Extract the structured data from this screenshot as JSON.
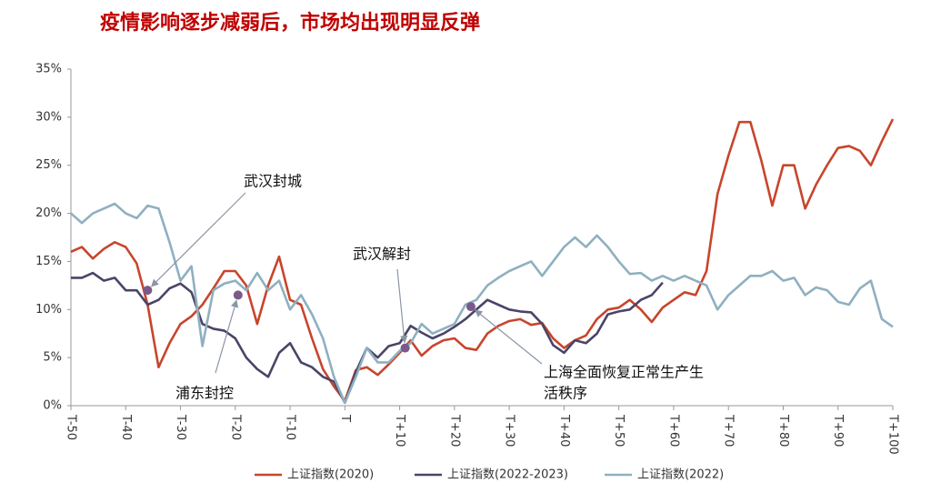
{
  "chart_data": {
    "type": "line",
    "title": "疫情影响逐步减弱后，市场均出现明显反弹",
    "x": [
      -50,
      -48,
      -46,
      -44,
      -42,
      -40,
      -38,
      -36,
      -34,
      -32,
      -30,
      -28,
      -26,
      -24,
      -22,
      -20,
      -18,
      -16,
      -14,
      -12,
      -10,
      -8,
      -6,
      -4,
      -2,
      0,
      2,
      4,
      6,
      8,
      10,
      12,
      14,
      16,
      18,
      20,
      22,
      24,
      26,
      28,
      30,
      32,
      34,
      36,
      38,
      40,
      42,
      44,
      46,
      48,
      50,
      52,
      54,
      56,
      58,
      60,
      62,
      64,
      66,
      68,
      70,
      72,
      74,
      76,
      78,
      80,
      82,
      84,
      86,
      88,
      90,
      92,
      94,
      96,
      98,
      100
    ],
    "series": [
      {
        "name": "上证指数(2020)",
        "color": "#c8452c",
        "values": [
          16,
          16.5,
          15.3,
          16.3,
          17,
          16.5,
          14.8,
          10.5,
          4,
          6.5,
          8.5,
          9.3,
          10.5,
          12.2,
          14,
          14,
          12.5,
          8.5,
          12.5,
          15.5,
          11,
          10.5,
          7,
          3.8,
          2,
          0.5,
          3.7,
          4,
          3.2,
          4.3,
          5.5,
          6.8,
          5.2,
          6.2,
          6.8,
          7,
          6,
          5.8,
          7.5,
          8.3,
          8.8,
          9,
          8.4,
          8.6,
          7,
          6,
          6.8,
          7.3,
          9,
          10,
          10.2,
          11,
          10,
          8.7,
          10.2,
          11,
          11.8,
          11.5,
          14,
          22,
          26,
          29.5,
          29.5,
          25.5,
          20.8,
          25,
          25,
          20.5,
          23,
          25,
          26.8,
          27,
          26.5,
          25,
          27.5,
          29.8
        ]
      },
      {
        "name": "上证指数(2022-2023)",
        "color": "#4a4468",
        "values": [
          13.3,
          13.3,
          13.8,
          13,
          13.3,
          12,
          12,
          10.5,
          11,
          12.2,
          12.7,
          11.8,
          8.5,
          8,
          7.8,
          7,
          5,
          3.8,
          3,
          5.5,
          6.5,
          4.5,
          4,
          3,
          2.5,
          0.3,
          3.5,
          6,
          5,
          6.2,
          6.5,
          8.3,
          7.6,
          7,
          7.5,
          8.2,
          9,
          10,
          11,
          10.5,
          10,
          9.8,
          9.7,
          8.5,
          6.3,
          5.5,
          6.8,
          6.5,
          7.5,
          9.5,
          9.8,
          10,
          11,
          11.5,
          12.8,
          null,
          null,
          null,
          null,
          null,
          null,
          null,
          null,
          null,
          null,
          null,
          null,
          null,
          null,
          null,
          null,
          null,
          null,
          null,
          null,
          null
        ]
      },
      {
        "name": "上证指数(2022)",
        "color": "#8fb0c0",
        "values": [
          20,
          19,
          20,
          20.5,
          21,
          20,
          19.5,
          20.8,
          20.5,
          17,
          13,
          14.5,
          6.2,
          12,
          12.7,
          13,
          12,
          13.8,
          12,
          13,
          10,
          11.5,
          9.5,
          7,
          3,
          0.3,
          3,
          6,
          4.5,
          4.5,
          5.7,
          6.5,
          8.5,
          7.5,
          8,
          8.5,
          10.5,
          11,
          12.5,
          13.3,
          14,
          14.5,
          15,
          13.5,
          15,
          16.5,
          17.5,
          16.5,
          17.7,
          16.5,
          15,
          13.7,
          13.8,
          13,
          13.5,
          13,
          13.5,
          13,
          12.5,
          10,
          11.5,
          12.5,
          13.5,
          13.5,
          14,
          13,
          13.3,
          11.5,
          12.3,
          12,
          10.8,
          10.5,
          12.2,
          13,
          9,
          8.2
        ]
      }
    ],
    "xlim": [
      -50,
      100
    ],
    "xticks": [
      {
        "value": -50,
        "label": "T-50"
      },
      {
        "value": -40,
        "label": "T-40"
      },
      {
        "value": -30,
        "label": "T-30"
      },
      {
        "value": -20,
        "label": "T-20"
      },
      {
        "value": -10,
        "label": "T-10"
      },
      {
        "value": 0,
        "label": "T"
      },
      {
        "value": 10,
        "label": "T+10"
      },
      {
        "value": 20,
        "label": "T+20"
      },
      {
        "value": 30,
        "label": "T+30"
      },
      {
        "value": 40,
        "label": "T+40"
      },
      {
        "value": 50,
        "label": "T+50"
      },
      {
        "value": 60,
        "label": "T+60"
      },
      {
        "value": 70,
        "label": "T+70"
      },
      {
        "value": 80,
        "label": "T+80"
      },
      {
        "value": 90,
        "label": "T+90"
      },
      {
        "value": 100,
        "label": "T+100"
      }
    ],
    "ylim": [
      0,
      35
    ],
    "yticks": [
      {
        "value": 0,
        "label": "0%"
      },
      {
        "value": 5,
        "label": "5%"
      },
      {
        "value": 10,
        "label": "10%"
      },
      {
        "value": 15,
        "label": "15%"
      },
      {
        "value": 20,
        "label": "20%"
      },
      {
        "value": 25,
        "label": "25%"
      },
      {
        "value": 30,
        "label": "30%"
      },
      {
        "value": 35,
        "label": "35%"
      }
    ],
    "grid": false,
    "legend": "bottom",
    "annotations": [
      {
        "lines": [
          "武汉封城"
        ],
        "x": -36,
        "y": 12
      },
      {
        "lines": [
          "浦东封控"
        ],
        "x": -19.5,
        "y": 11.5
      },
      {
        "lines": [
          "武汉解封"
        ],
        "x": 11,
        "y": 6
      },
      {
        "lines": [
          "上海全面恢复正常生产生",
          "活秩序"
        ],
        "x": 23,
        "y": 10.3
      }
    ],
    "marker_color": "#7a5a8a"
  }
}
